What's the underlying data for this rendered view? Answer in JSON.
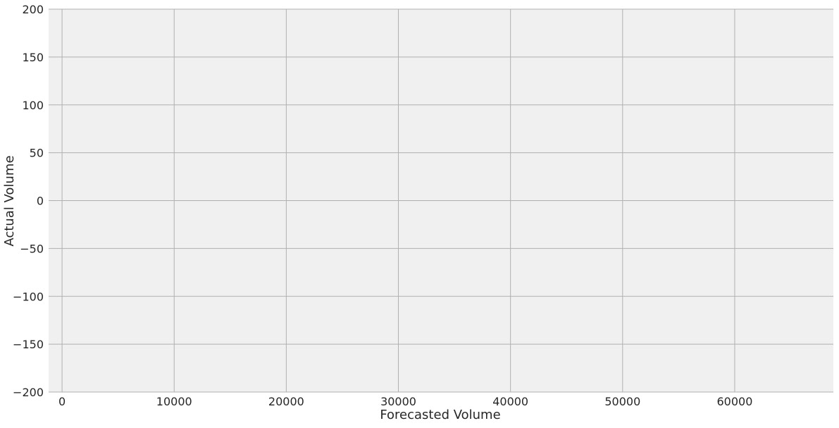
{
  "chart_data": {
    "type": "scatter",
    "title": "",
    "xlabel": "Forecasted Volume",
    "ylabel": "Actual Volume",
    "xlim": [
      -1200,
      68800
    ],
    "ylim": [
      -200,
      200
    ],
    "xticks": [
      0,
      10000,
      20000,
      30000,
      40000,
      50000,
      60000
    ],
    "xtick_labels": [
      "0",
      "10000",
      "20000",
      "30000",
      "40000",
      "50000",
      "60000"
    ],
    "yticks": [
      -200,
      -150,
      -100,
      -50,
      0,
      50,
      100,
      150,
      200
    ],
    "ytick_labels": [
      "−200",
      "−150",
      "−100",
      "−50",
      "0",
      "50",
      "100",
      "150",
      "200"
    ],
    "grid": true,
    "series": [],
    "colors": {
      "plot_background": "#f0f0f0",
      "grid": "#b0b0b0",
      "text": "#262626"
    }
  }
}
